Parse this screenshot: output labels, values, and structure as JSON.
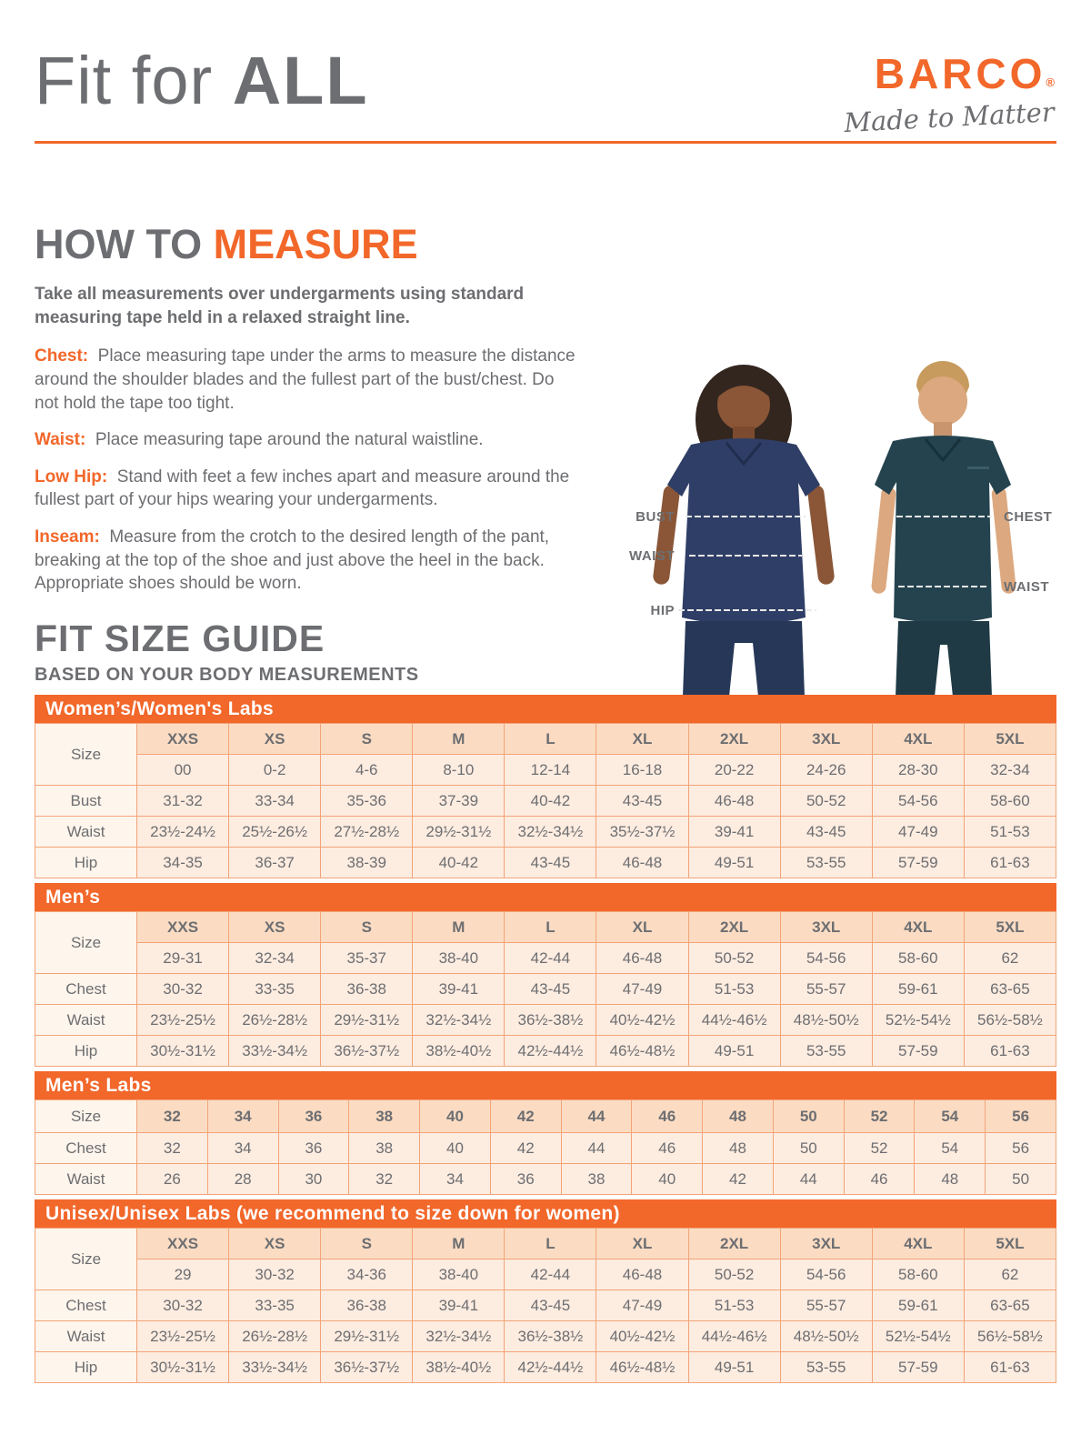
{
  "header": {
    "title_regular": "Fit for",
    "title_bold": "ALL",
    "brand": "BARCO",
    "registered_mark": "®",
    "tagline": "Made to Matter"
  },
  "how_to_measure": {
    "title_gray": "HOW TO",
    "title_orange": "MEASURE",
    "intro": "Take all measurements over undergarments using standard measuring tape held in a relaxed straight line.",
    "items": [
      {
        "label": "Chest:",
        "text": "Place measuring tape under the arms to measure the distance around the shoulder blades and the fullest part of the bust/chest. Do not hold the tape too tight."
      },
      {
        "label": "Waist:",
        "text": "Place measuring tape around the natural waistline."
      },
      {
        "label": "Low Hip:",
        "text": "Stand with feet a few inches apart and measure around the fullest part of your hips wearing your undergarments."
      },
      {
        "label": "Inseam:",
        "text": "Measure from the crotch to the desired length of the pant, breaking at the top of the shoe and just above the heel in the back. Appropriate shoes should be worn."
      }
    ]
  },
  "figure": {
    "labels_left": [
      "BUST",
      "WAIST",
      "HIP"
    ],
    "labels_right": [
      "CHEST",
      "WAIST"
    ]
  },
  "size_guide": {
    "title": "FIT SIZE GUIDE",
    "subtitle": "BASED ON YOUR BODY MEASUREMENTS",
    "tables": [
      {
        "title": "Women’s/Women's Labs",
        "size_label": "Size",
        "sizes": [
          "XXS",
          "XS",
          "S",
          "M",
          "L",
          "XL",
          "2XL",
          "3XL",
          "4XL",
          "5XL"
        ],
        "sub_sizes": [
          "00",
          "0-2",
          "4-6",
          "8-10",
          "12-14",
          "16-18",
          "20-22",
          "24-26",
          "28-30",
          "32-34"
        ],
        "rows": [
          {
            "label": "Bust",
            "values": [
              "31-32",
              "33-34",
              "35-36",
              "37-39",
              "40-42",
              "43-45",
              "46-48",
              "50-52",
              "54-56",
              "58-60"
            ]
          },
          {
            "label": "Waist",
            "values": [
              "23½-24½",
              "25½-26½",
              "27½-28½",
              "29½-31½",
              "32½-34½",
              "35½-37½",
              "39-41",
              "43-45",
              "47-49",
              "51-53"
            ]
          },
          {
            "label": "Hip",
            "values": [
              "34-35",
              "36-37",
              "38-39",
              "40-42",
              "43-45",
              "46-48",
              "49-51",
              "53-55",
              "57-59",
              "61-63"
            ]
          }
        ]
      },
      {
        "title": "Men’s",
        "size_label": "Size",
        "sizes": [
          "XXS",
          "XS",
          "S",
          "M",
          "L",
          "XL",
          "2XL",
          "3XL",
          "4XL",
          "5XL"
        ],
        "sub_sizes": [
          "29-31",
          "32-34",
          "35-37",
          "38-40",
          "42-44",
          "46-48",
          "50-52",
          "54-56",
          "58-60",
          "62"
        ],
        "rows": [
          {
            "label": "Chest",
            "values": [
              "30-32",
              "33-35",
              "36-38",
              "39-41",
              "43-45",
              "47-49",
              "51-53",
              "55-57",
              "59-61",
              "63-65"
            ]
          },
          {
            "label": "Waist",
            "values": [
              "23½-25½",
              "26½-28½",
              "29½-31½",
              "32½-34½",
              "36½-38½",
              "40½-42½",
              "44½-46½",
              "48½-50½",
              "52½-54½",
              "56½-58½"
            ]
          },
          {
            "label": "Hip",
            "values": [
              "30½-31½",
              "33½-34½",
              "36½-37½",
              "38½-40½",
              "42½-44½",
              "46½-48½",
              "49-51",
              "53-55",
              "57-59",
              "61-63"
            ]
          }
        ]
      },
      {
        "title": "Men’s Labs",
        "size_label": "Size",
        "sizes": [
          "32",
          "34",
          "36",
          "38",
          "40",
          "42",
          "44",
          "46",
          "48",
          "50",
          "52",
          "54",
          "56"
        ],
        "sub_sizes": null,
        "rows": [
          {
            "label": "Chest",
            "values": [
              "32",
              "34",
              "36",
              "38",
              "40",
              "42",
              "44",
              "46",
              "48",
              "50",
              "52",
              "54",
              "56"
            ]
          },
          {
            "label": "Waist",
            "values": [
              "26",
              "28",
              "30",
              "32",
              "34",
              "36",
              "38",
              "40",
              "42",
              "44",
              "46",
              "48",
              "50"
            ]
          }
        ]
      },
      {
        "title": "Unisex/Unisex Labs (we recommend to size down for women)",
        "size_label": "Size",
        "sizes": [
          "XXS",
          "XS",
          "S",
          "M",
          "L",
          "XL",
          "2XL",
          "3XL",
          "4XL",
          "5XL"
        ],
        "sub_sizes": [
          "29",
          "30-32",
          "34-36",
          "38-40",
          "42-44",
          "46-48",
          "50-52",
          "54-56",
          "58-60",
          "62"
        ],
        "rows": [
          {
            "label": "Chest",
            "values": [
              "30-32",
              "33-35",
              "36-38",
              "39-41",
              "43-45",
              "47-49",
              "51-53",
              "55-57",
              "59-61",
              "63-65"
            ]
          },
          {
            "label": "Waist",
            "values": [
              "23½-25½",
              "26½-28½",
              "29½-31½",
              "32½-34½",
              "36½-38½",
              "40½-42½",
              "44½-46½",
              "48½-50½",
              "52½-54½",
              "56½-58½"
            ]
          },
          {
            "label": "Hip",
            "values": [
              "30½-31½",
              "33½-34½",
              "36½-37½",
              "38½-40½",
              "42½-44½",
              "46½-48½",
              "49-51",
              "53-55",
              "57-59",
              "61-63"
            ]
          }
        ]
      }
    ]
  },
  "colors": {
    "accent_orange": "#F2672A",
    "text_gray": "#6D6E71",
    "table_border": "#F2A478",
    "size_header_bg": "#FBDCC3",
    "cell_bg": "#FDECE0",
    "label_cell_bg": "#FEF5EC",
    "woman_scrub": "#2F3E66",
    "man_scrub": "#24434E"
  }
}
